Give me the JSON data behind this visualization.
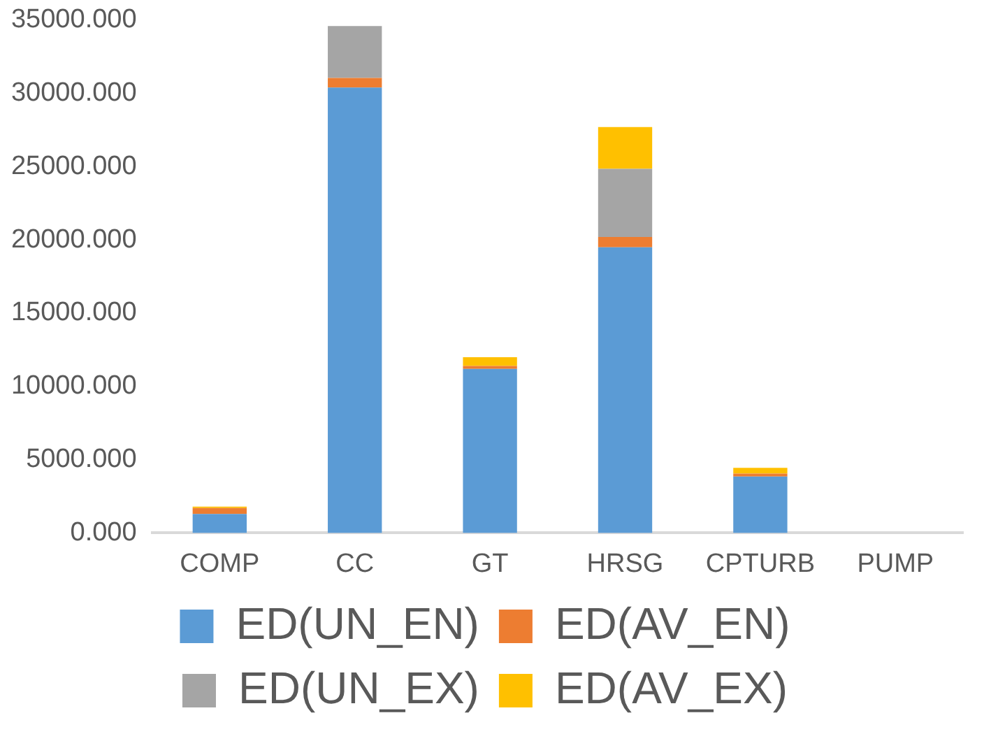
{
  "chart_data": {
    "type": "bar",
    "stacked": true,
    "categories": [
      "COMP",
      "CC",
      "GT",
      "HRSG",
      "CPTURB",
      "PUMP"
    ],
    "series": [
      {
        "name": "ED(UN_EN)",
        "color": "#5b9bd5",
        "values": [
          1300,
          30400,
          11200,
          19500,
          3850,
          0
        ]
      },
      {
        "name": "ED(AV_EN)",
        "color": "#ed7d31",
        "values": [
          400,
          650,
          200,
          700,
          200,
          0
        ]
      },
      {
        "name": "ED(UN_EX)",
        "color": "#a5a5a5",
        "values": [
          0,
          3550,
          0,
          4650,
          0,
          0
        ]
      },
      {
        "name": "ED(AV_EX)",
        "color": "#ffc000",
        "values": [
          100,
          0,
          600,
          2850,
          400,
          0
        ]
      }
    ],
    "ylim": [
      0,
      35000
    ],
    "yticks": [
      {
        "value": 0,
        "label": "0.000"
      },
      {
        "value": 5000,
        "label": "5000.000"
      },
      {
        "value": 10000,
        "label": "10000.000"
      },
      {
        "value": 15000,
        "label": "15000.000"
      },
      {
        "value": 20000,
        "label": "20000.000"
      },
      {
        "value": 25000,
        "label": "25000.000"
      },
      {
        "value": 30000,
        "label": "30000.000"
      },
      {
        "value": 35000,
        "label": "35000.000"
      }
    ],
    "grid": false,
    "legend": "bottom"
  }
}
